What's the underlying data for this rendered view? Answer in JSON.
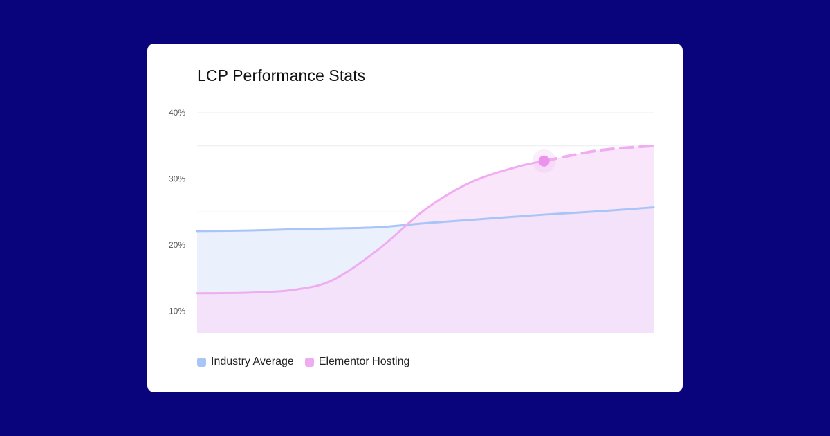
{
  "chart_data": {
    "type": "area",
    "title": "LCP Performance Stats",
    "xlabel": "",
    "ylabel": "",
    "ylim": [
      6.7,
      40
    ],
    "yticks": [
      {
        "value": 40,
        "label": "40%"
      },
      {
        "value": 30,
        "label": "30%"
      },
      {
        "value": 20,
        "label": "20%"
      },
      {
        "value": 10,
        "label": "10%"
      }
    ],
    "gridlines": [
      10,
      15,
      20,
      25,
      30,
      35,
      40
    ],
    "x": [
      0,
      0.12,
      0.22,
      0.3,
      0.4,
      0.5,
      0.6,
      0.7,
      0.76,
      0.88,
      1.0
    ],
    "series": [
      {
        "name": "Industry Average",
        "color": "#a9c4f7",
        "fill": "#eaf1fd",
        "values": [
          22.1,
          22.2,
          22.4,
          22.5,
          22.7,
          23.3,
          23.8,
          24.3,
          24.6,
          25.1,
          25.7
        ]
      },
      {
        "name": "Elementor Hosting",
        "color": "#f0acf0",
        "fill": "#f6dcf8",
        "values": [
          12.7,
          12.8,
          13.3,
          14.8,
          19.5,
          25.4,
          29.5,
          31.8,
          32.7,
          34.3,
          35.0
        ],
        "dashed_from_index": 8,
        "highlight_index": 8
      }
    ],
    "legend_position": "bottom-left",
    "grid": true
  }
}
